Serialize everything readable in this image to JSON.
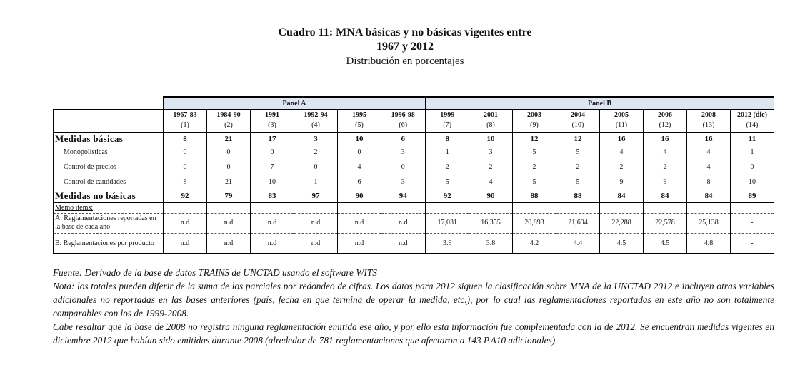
{
  "title": {
    "line1": "Cuadro 11: MNA básicas y no básicas vigentes entre",
    "line2": "1967 y 2012",
    "line3": "Distribución en porcentajes"
  },
  "table": {
    "panels": [
      "Panel A",
      "Panel B"
    ],
    "columns": [
      {
        "year": "1967-83",
        "num": "(1)"
      },
      {
        "year": "1984-90",
        "num": "(2)"
      },
      {
        "year": "1991",
        "num": "(3)"
      },
      {
        "year": "1992-94",
        "num": "(4)"
      },
      {
        "year": "1995",
        "num": "(5)"
      },
      {
        "year": "1996-98",
        "num": "(6)"
      },
      {
        "year": "1999",
        "num": "(7)"
      },
      {
        "year": "2001",
        "num": "(8)"
      },
      {
        "year": "2003",
        "num": "(9)"
      },
      {
        "year": "2004",
        "num": "(10)"
      },
      {
        "year": "2005",
        "num": "(11)"
      },
      {
        "year": "2006",
        "num": "(12)"
      },
      {
        "year": "2008",
        "num": "(13)"
      },
      {
        "year": "2012 (dic)",
        "num": "(14)"
      }
    ],
    "rows": [
      {
        "label": "Medidas básicas",
        "type": "main",
        "values": [
          "8",
          "21",
          "17",
          "3",
          "10",
          "6",
          "8",
          "10",
          "12",
          "12",
          "16",
          "16",
          "16",
          "11"
        ]
      },
      {
        "label": "Monopolísticas",
        "type": "sub",
        "values": [
          "0",
          "0",
          "0",
          "2",
          "0",
          "3",
          "1",
          "3",
          "5",
          "5",
          "4",
          "4",
          "4",
          "1"
        ]
      },
      {
        "label": "Control de precios",
        "type": "sub",
        "values": [
          "0",
          "0",
          "7",
          "0",
          "4",
          "0",
          "2",
          "2",
          "2",
          "2",
          "2",
          "2",
          "4",
          "0"
        ]
      },
      {
        "label": "Control de cantidades",
        "type": "sub",
        "values": [
          "8",
          "21",
          "10",
          "1",
          "6",
          "3",
          "5",
          "4",
          "5",
          "5",
          "9",
          "9",
          "8",
          "10"
        ]
      },
      {
        "label": "Medidas no básicas",
        "type": "main nob",
        "values": [
          "92",
          "79",
          "83",
          "97",
          "90",
          "94",
          "92",
          "90",
          "88",
          "88",
          "84",
          "84",
          "84",
          "89"
        ]
      },
      {
        "label": "Memo ítems:",
        "type": "memo",
        "values": [
          "",
          "",
          "",
          "",
          "",
          "",
          "",
          "",
          "",
          "",
          "",
          "",
          "",
          ""
        ]
      },
      {
        "label": "A. Reglamentaciones reportadas en la base de cada año",
        "type": "ra",
        "values": [
          "n.d",
          "n.d",
          "n.d",
          "n.d",
          "n.d",
          "n.d",
          "17,031",
          "16,355",
          "20,893",
          "21,694",
          "22,288",
          "22,578",
          "25,138",
          "-"
        ]
      },
      {
        "label": "B. Reglamentaciones por producto",
        "type": "rb",
        "values": [
          "n.d",
          "n.d",
          "n.d",
          "n.d",
          "n.d",
          "n.d",
          "3.9",
          "3.8",
          "4.2",
          "4.4",
          "4.5",
          "4.5",
          "4.8",
          "-"
        ]
      }
    ]
  },
  "notes": [
    "Fuente: Derivado de la base de datos TRAINS de UNCTAD usando el software WITS",
    "Nota: los totales pueden diferir de la suma de los parciales por redondeo de cifras. Los datos para 2012 siguen la clasificación sobre MNA de la UNCTAD 2012 e incluyen otras variables adicionales no reportadas en las bases anteriores (país, fecha en que termina de operar la medida, etc.), por lo cual las reglamentaciones reportadas en este año no son totalmente comparables con los de 1999-2008.",
    "Cabe resaltar que la base de 2008 no registra ninguna reglamentación emitida ese año, y por ello esta información fue complementada con la de 2012. Se encuentran medidas vigentes en diciembre 2012 que habían sido emitidas durante 2008 (alrededor de 781 reglamentaciones que afectaron a 143 P.A10 adicionales)."
  ],
  "colors": {
    "panel_header_bg": "#dde5f0"
  }
}
